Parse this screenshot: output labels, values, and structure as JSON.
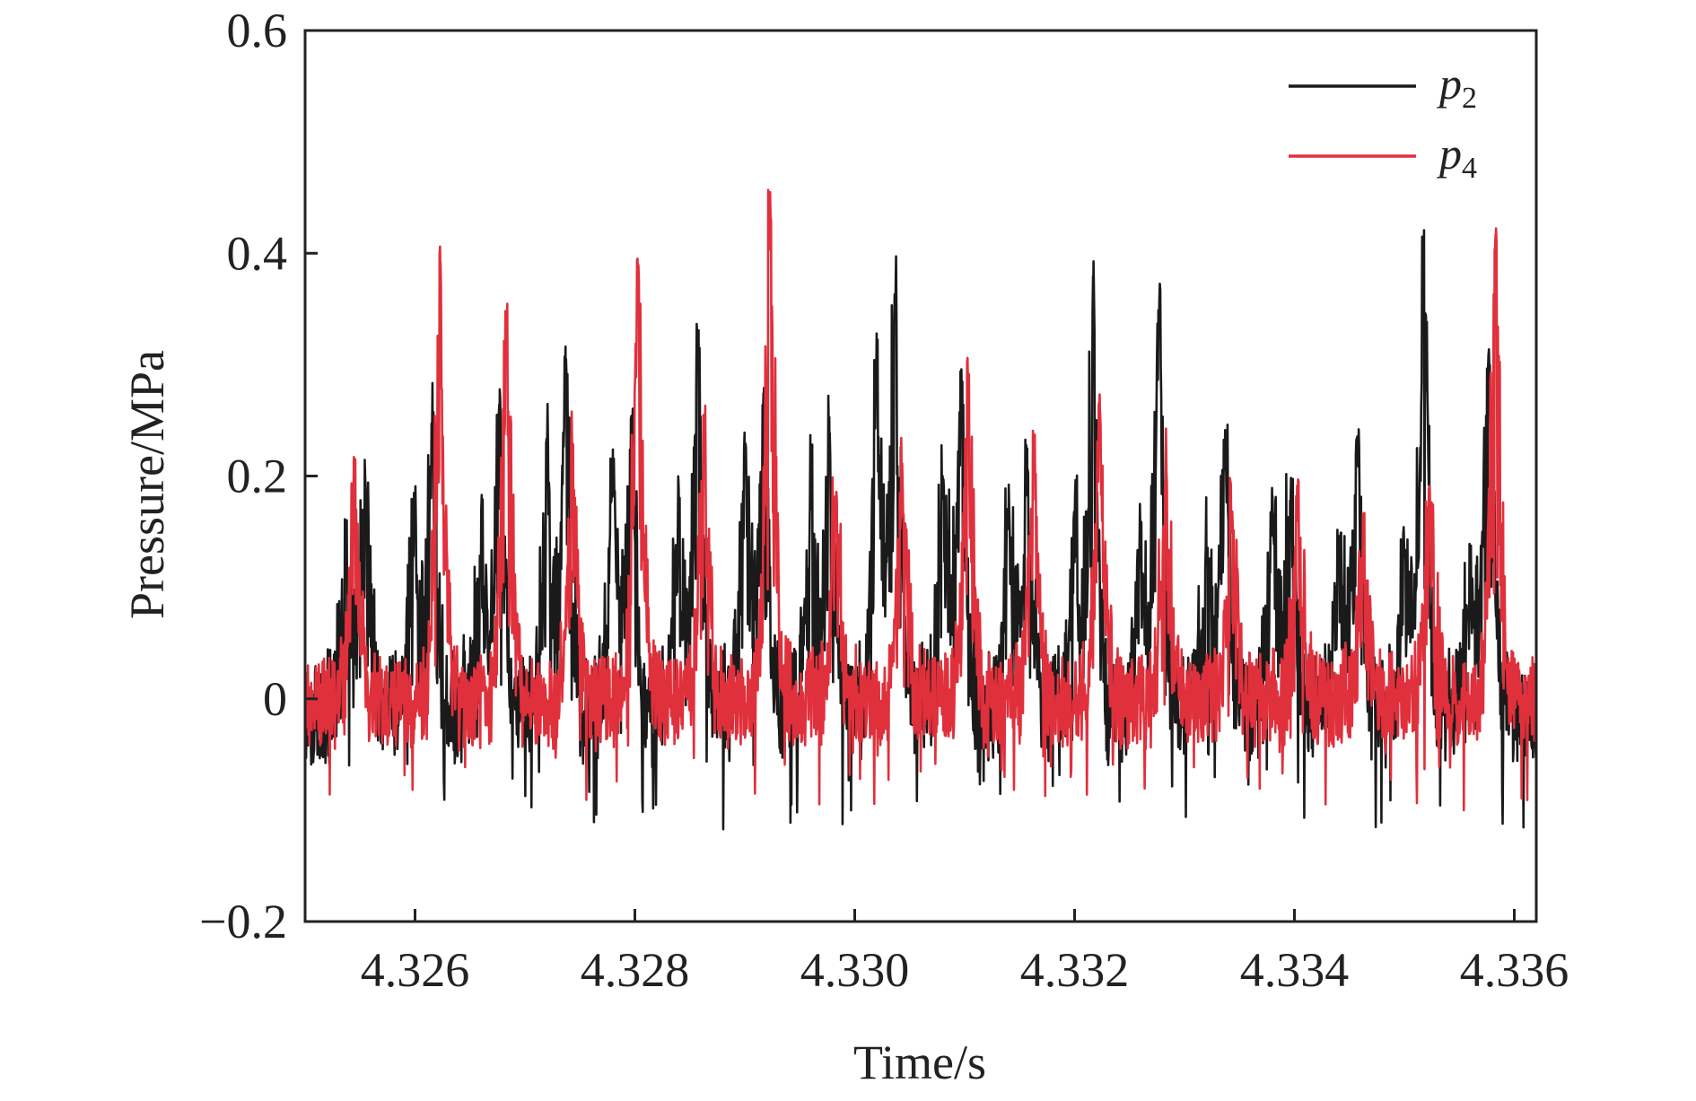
{
  "chart_data": {
    "type": "line",
    "title": "",
    "xlabel": "Time/s",
    "ylabel": "Pressure/MPa",
    "xlim": [
      4.325,
      4.3362
    ],
    "ylim": [
      -0.2,
      0.6
    ],
    "x_ticks": [
      4.326,
      4.328,
      4.33,
      4.332,
      4.334,
      4.336
    ],
    "x_tick_labels": [
      "4.326",
      "4.328",
      "4.330",
      "4.332",
      "4.334",
      "4.336"
    ],
    "y_ticks": [
      -0.2,
      0,
      0.2,
      0.4,
      0.6
    ],
    "y_tick_labels": [
      "−0.2",
      "0",
      "0.2",
      "0.4",
      "0.6"
    ],
    "grid": false,
    "legend_position": "top-right",
    "series": [
      {
        "name": "p2",
        "legend_base": "p",
        "legend_sub": "2",
        "color": "#1a1a1a",
        "baseline": -0.015,
        "noise": 0.045,
        "trough": -0.13,
        "peaks": [
          [
            4.32537,
            0.12
          ],
          [
            4.32555,
            0.19
          ],
          [
            4.326,
            0.16
          ],
          [
            4.32616,
            0.25
          ],
          [
            4.3266,
            0.12
          ],
          [
            4.32677,
            0.25
          ],
          [
            4.3272,
            0.22
          ],
          [
            4.32737,
            0.29
          ],
          [
            4.3278,
            0.2
          ],
          [
            4.32797,
            0.23
          ],
          [
            4.3284,
            0.16
          ],
          [
            4.32857,
            0.32
          ],
          [
            4.329,
            0.22
          ],
          [
            4.32917,
            0.26
          ],
          [
            4.3296,
            0.17
          ],
          [
            4.32977,
            0.23
          ],
          [
            4.3302,
            0.3
          ],
          [
            4.33037,
            0.36
          ],
          [
            4.3308,
            0.2
          ],
          [
            4.33097,
            0.28
          ],
          [
            4.3314,
            0.17
          ],
          [
            4.33157,
            0.2
          ],
          [
            4.332,
            0.15
          ],
          [
            4.33217,
            0.37
          ],
          [
            4.3326,
            0.14
          ],
          [
            4.33277,
            0.35
          ],
          [
            4.3332,
            0.12
          ],
          [
            4.33337,
            0.21
          ],
          [
            4.3338,
            0.16
          ],
          [
            4.33397,
            0.19
          ],
          [
            4.3344,
            0.13
          ],
          [
            4.33457,
            0.23
          ],
          [
            4.335,
            0.13
          ],
          [
            4.33517,
            0.4
          ],
          [
            4.3356,
            0.1
          ],
          [
            4.33577,
            0.31
          ]
        ]
      },
      {
        "name": "p4",
        "legend_base": "p",
        "legend_sub": "4",
        "color": "#e0303c",
        "baseline": -0.005,
        "noise": 0.04,
        "trough": -0.11,
        "peaks": [
          [
            4.32545,
            0.19
          ],
          [
            4.32623,
            0.39
          ],
          [
            4.32683,
            0.34
          ],
          [
            4.32743,
            0.23
          ],
          [
            4.32803,
            0.39
          ],
          [
            4.32863,
            0.25
          ],
          [
            4.32923,
            0.44
          ],
          [
            4.32983,
            0.17
          ],
          [
            4.33043,
            0.21
          ],
          [
            4.33103,
            0.28
          ],
          [
            4.33163,
            0.22
          ],
          [
            4.33223,
            0.26
          ],
          [
            4.33283,
            0.2
          ],
          [
            4.33343,
            0.16
          ],
          [
            4.33403,
            0.18
          ],
          [
            4.33463,
            0.14
          ],
          [
            4.33523,
            0.17
          ],
          [
            4.33583,
            0.4
          ]
        ]
      }
    ]
  }
}
